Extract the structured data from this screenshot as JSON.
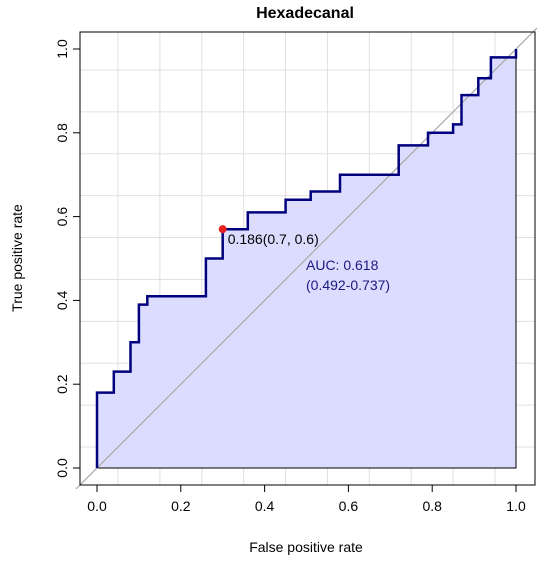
{
  "chart_data": {
    "type": "line",
    "title": "Hexadecanal",
    "xlabel": "False positive rate",
    "ylabel": "True positive rate",
    "xlim": [
      0,
      1
    ],
    "ylim": [
      0,
      1
    ],
    "x_ticks": [
      0.0,
      0.2,
      0.4,
      0.6,
      0.8,
      1.0
    ],
    "x_tick_labels": [
      "0.0",
      "0.2",
      "0.4",
      "0.6",
      "0.8",
      "1.0"
    ],
    "y_ticks": [
      0.0,
      0.2,
      0.4,
      0.6,
      0.8,
      1.0
    ],
    "y_tick_labels": [
      "0.0",
      "0.2",
      "0.4",
      "0.6",
      "0.8",
      "1.0"
    ],
    "grid": true,
    "reference_line": [
      [
        0,
        0
      ],
      [
        1,
        1
      ]
    ],
    "roc_curve": {
      "x": [
        0,
        0,
        0.04,
        0.04,
        0.08,
        0.08,
        0.1,
        0.1,
        0.12,
        0.12,
        0.26,
        0.26,
        0.3,
        0.3,
        0.36,
        0.36,
        0.45,
        0.45,
        0.51,
        0.51,
        0.58,
        0.58,
        0.72,
        0.72,
        0.79,
        0.79,
        0.85,
        0.85,
        0.87,
        0.87,
        0.91,
        0.91,
        0.94,
        0.94,
        1.0,
        1.0
      ],
      "y": [
        0,
        0.18,
        0.18,
        0.23,
        0.23,
        0.3,
        0.3,
        0.39,
        0.39,
        0.41,
        0.41,
        0.5,
        0.5,
        0.57,
        0.57,
        0.61,
        0.61,
        0.64,
        0.64,
        0.66,
        0.66,
        0.7,
        0.7,
        0.77,
        0.77,
        0.8,
        0.8,
        0.82,
        0.82,
        0.89,
        0.89,
        0.93,
        0.93,
        0.98,
        0.98,
        1.0
      ],
      "line_color": "#00007f",
      "fill_color": "#dcdcff"
    },
    "threshold_point": {
      "x": 0.3,
      "y": 0.57,
      "label": "0.186(0.7, 0.6)",
      "color": "#e8201e"
    },
    "auc_label": "AUC: 0.618",
    "auc_ci_label": "(0.492-0.737)",
    "auc_text_color": "#1a1a80"
  }
}
